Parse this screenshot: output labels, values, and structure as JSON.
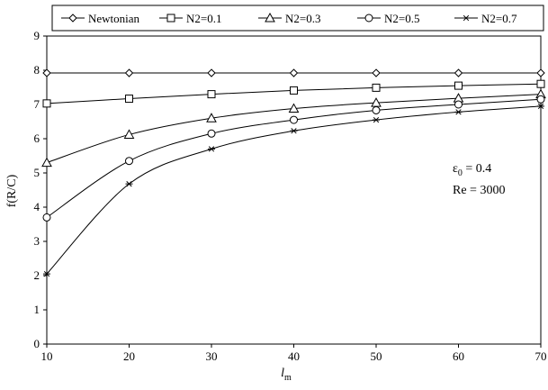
{
  "chart_data": {
    "type": "line",
    "xlabel": "l",
    "xlabel_subscript": "m",
    "ylabel": "f(R/C)",
    "xlim": [
      10,
      70
    ],
    "ylim": [
      0,
      9
    ],
    "x_ticks": [
      "10",
      "20",
      "30",
      "40",
      "50",
      "60",
      "70"
    ],
    "y_ticks": [
      "0",
      "1",
      "2",
      "3",
      "4",
      "5",
      "6",
      "7",
      "8",
      "9"
    ],
    "x": [
      10,
      20,
      30,
      40,
      50,
      60,
      70
    ],
    "grid": false,
    "legend_position": "top",
    "series": [
      {
        "name": "Newtonian",
        "marker": "diamond",
        "values": [
          7.92,
          7.92,
          7.92,
          7.92,
          7.92,
          7.92,
          7.92
        ]
      },
      {
        "name": "N2=0.1",
        "marker": "square",
        "values": [
          7.03,
          7.17,
          7.3,
          7.41,
          7.49,
          7.55,
          7.6
        ]
      },
      {
        "name": "N2=0.3",
        "marker": "triangle",
        "values": [
          5.3,
          6.12,
          6.6,
          6.88,
          7.05,
          7.18,
          7.3
        ]
      },
      {
        "name": "N2=0.5",
        "marker": "circle",
        "values": [
          3.7,
          5.35,
          6.15,
          6.55,
          6.83,
          7.0,
          7.15
        ]
      },
      {
        "name": "N2=0.7",
        "marker": "star",
        "values": [
          2.05,
          4.68,
          5.7,
          6.23,
          6.55,
          6.78,
          6.95
        ]
      }
    ],
    "annotations": [
      {
        "text": "ε",
        "subscript": "0",
        "suffix": " = 0.4"
      },
      {
        "text": "Re = 3000"
      }
    ]
  }
}
